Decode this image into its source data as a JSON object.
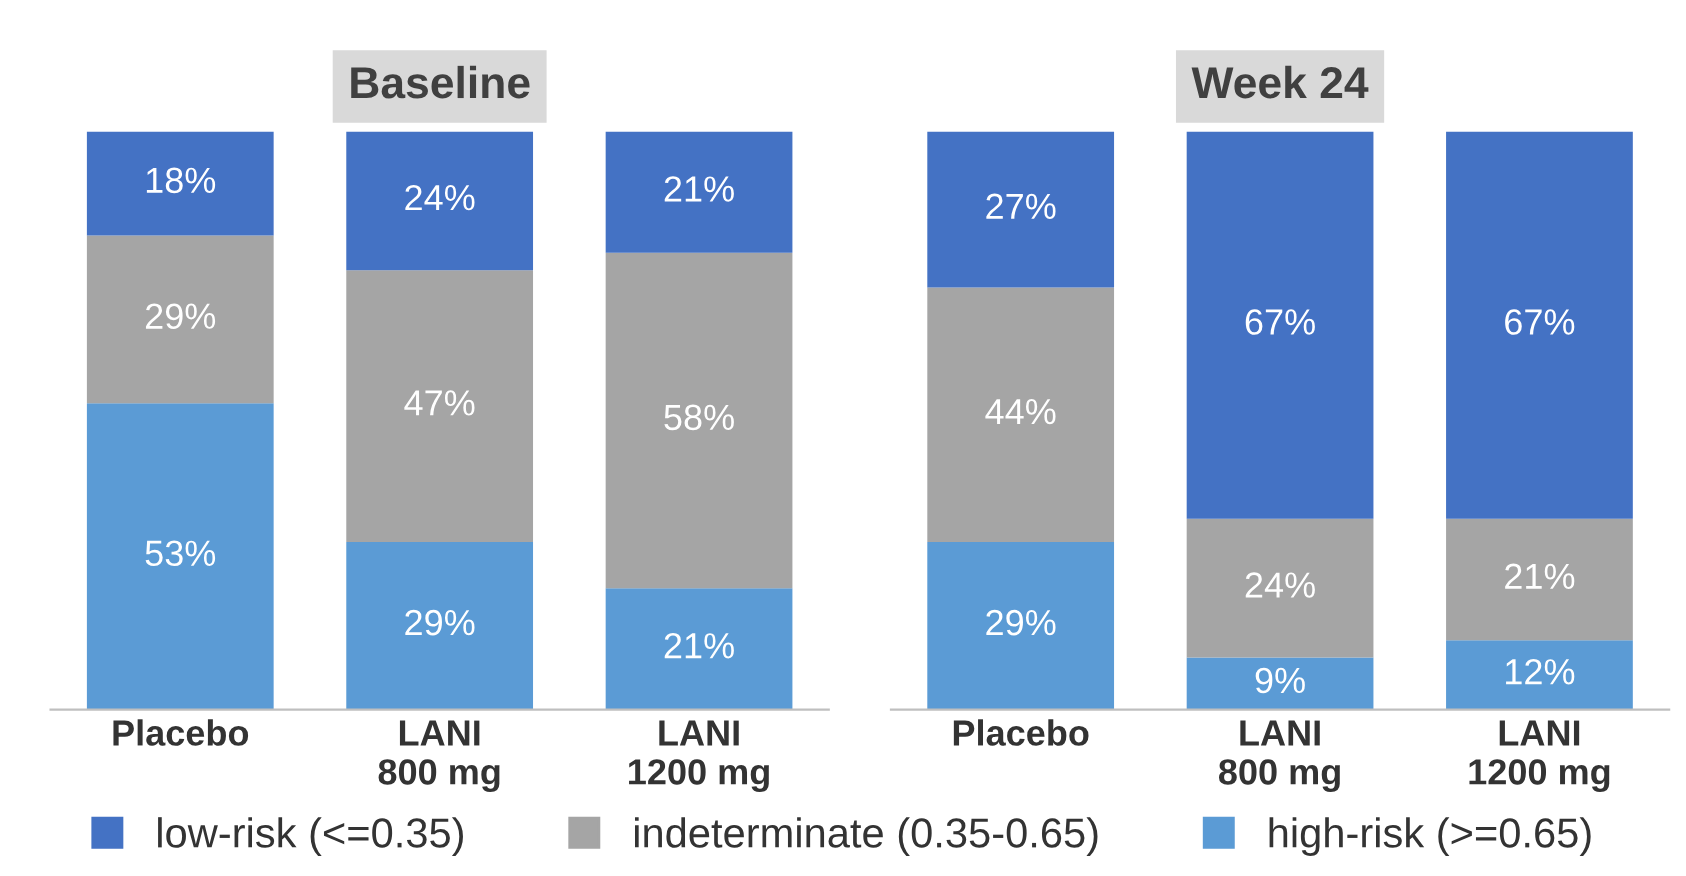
{
  "chart_data": [
    {
      "type": "bar",
      "title": "Baseline",
      "stacked": true,
      "categories": [
        "Placebo",
        "LANI\n800 mg",
        "LANI\n1200 mg"
      ],
      "ylim": [
        0,
        100
      ],
      "tick_labels": "x",
      "grid": false,
      "legend": "bottom",
      "series": [
        {
          "name": "high-risk (>=0.65)",
          "color": "#5b9bd5",
          "values": [
            53,
            29,
            21
          ],
          "value_labels": [
            "53%",
            "29%",
            "21%"
          ]
        },
        {
          "name": "indeterminate (0.35-0.65)",
          "color": "#a5a5a5",
          "values": [
            29,
            47,
            58
          ],
          "value_labels": [
            "29%",
            "47%",
            "58%"
          ]
        },
        {
          "name": "low-risk (<=0.35)",
          "color": "#4472c4",
          "values": [
            18,
            24,
            21
          ],
          "value_labels": [
            "18%",
            "24%",
            "21%"
          ]
        }
      ]
    },
    {
      "type": "bar",
      "title": "Week 24",
      "stacked": true,
      "categories": [
        "Placebo",
        "LANI\n800 mg",
        "LANI\n1200 mg"
      ],
      "ylim": [
        0,
        100
      ],
      "tick_labels": "x",
      "grid": false,
      "series": [
        {
          "color": "#5b9bd5",
          "values": [
            29,
            9,
            12
          ],
          "value_labels": [
            "29%",
            "9%",
            "12%"
          ]
        },
        {
          "color": "#a5a5a5",
          "values": [
            44,
            24,
            21
          ],
          "value_labels": [
            "44%",
            "24%",
            "21%"
          ]
        },
        {
          "color": "#4472c4",
          "values": [
            27,
            67,
            67
          ],
          "value_labels": [
            "27%",
            "67%",
            "67%"
          ]
        }
      ]
    }
  ]
}
